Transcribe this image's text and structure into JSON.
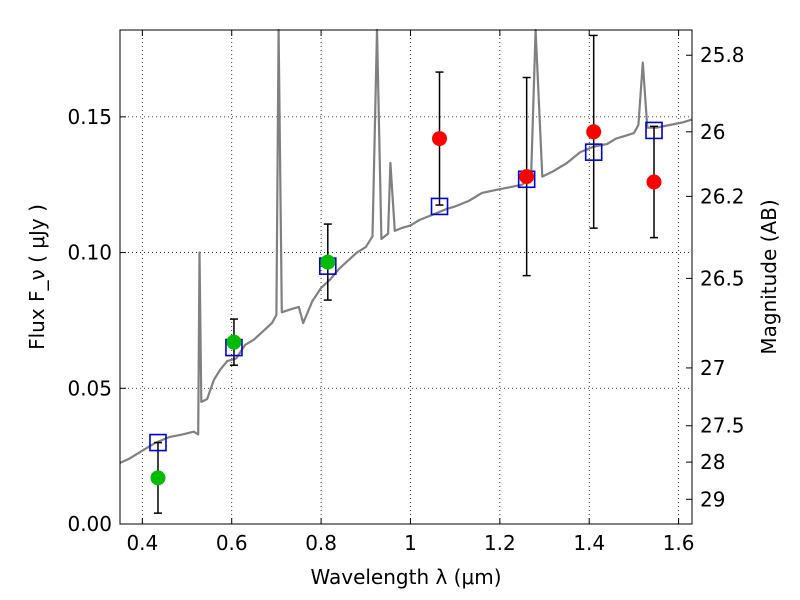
{
  "chart_data": {
    "type": "scatter",
    "xlabel": "Wavelength  λ (μm)",
    "ylabel": "Flux  F_ν  ( μJy )",
    "ylabel_right": "Magnitude (AB)",
    "xlim": [
      0.35,
      1.63
    ],
    "ylim": [
      0.0,
      0.182
    ],
    "grid": true,
    "x_ticks": [
      {
        "value": 0.4,
        "label": "0.4"
      },
      {
        "value": 0.6,
        "label": "0.6"
      },
      {
        "value": 0.8,
        "label": "0.8"
      },
      {
        "value": 1.0,
        "label": "1"
      },
      {
        "value": 1.2,
        "label": "1.2"
      },
      {
        "value": 1.4,
        "label": "1.4"
      },
      {
        "value": 1.6,
        "label": "1.6"
      }
    ],
    "y_ticks": [
      {
        "value": 0.0,
        "label": "0.00"
      },
      {
        "value": 0.05,
        "label": "0.05"
      },
      {
        "value": 0.1,
        "label": "0.10"
      },
      {
        "value": 0.15,
        "label": "0.15"
      }
    ],
    "right_ticks": [
      {
        "flux": 0.1727,
        "label": "25.8"
      },
      {
        "flux": 0.1445,
        "label": "26"
      },
      {
        "flux": 0.1207,
        "label": "26.2"
      },
      {
        "flux": 0.0905,
        "label": "26.5"
      },
      {
        "flux": 0.0575,
        "label": "27"
      },
      {
        "flux": 0.0362,
        "label": "27.5"
      },
      {
        "flux": 0.0228,
        "label": "28"
      },
      {
        "flux": 0.0091,
        "label": "29"
      }
    ],
    "sed_model": {
      "color": "#808080",
      "points": [
        [
          0.35,
          0.0225
        ],
        [
          0.37,
          0.024
        ],
        [
          0.4,
          0.027
        ],
        [
          0.43,
          0.03
        ],
        [
          0.46,
          0.032
        ],
        [
          0.49,
          0.033
        ],
        [
          0.515,
          0.034
        ],
        [
          0.525,
          0.033
        ],
        [
          0.528,
          0.1
        ],
        [
          0.532,
          0.045
        ],
        [
          0.545,
          0.046
        ],
        [
          0.56,
          0.053
        ],
        [
          0.575,
          0.057
        ],
        [
          0.59,
          0.06
        ],
        [
          0.61,
          0.061
        ],
        [
          0.63,
          0.066
        ],
        [
          0.65,
          0.068
        ],
        [
          0.67,
          0.071
        ],
        [
          0.69,
          0.074
        ],
        [
          0.7,
          0.077
        ],
        [
          0.705,
          0.182
        ],
        [
          0.712,
          0.078
        ],
        [
          0.73,
          0.079
        ],
        [
          0.75,
          0.08
        ],
        [
          0.76,
          0.074
        ],
        [
          0.78,
          0.082
        ],
        [
          0.8,
          0.087
        ],
        [
          0.82,
          0.09
        ],
        [
          0.84,
          0.094
        ],
        [
          0.86,
          0.097
        ],
        [
          0.88,
          0.1
        ],
        [
          0.9,
          0.102
        ],
        [
          0.915,
          0.106
        ],
        [
          0.925,
          0.182
        ],
        [
          0.935,
          0.105
        ],
        [
          0.95,
          0.107
        ],
        [
          0.955,
          0.133
        ],
        [
          0.965,
          0.108
        ],
        [
          0.98,
          0.109
        ],
        [
          1.0,
          0.11
        ],
        [
          1.02,
          0.112
        ],
        [
          1.05,
          0.114
        ],
        [
          1.08,
          0.116
        ],
        [
          1.1,
          0.117
        ],
        [
          1.13,
          0.119
        ],
        [
          1.16,
          0.122
        ],
        [
          1.19,
          0.123
        ],
        [
          1.22,
          0.124
        ],
        [
          1.25,
          0.125
        ],
        [
          1.27,
          0.128
        ],
        [
          1.28,
          0.182
        ],
        [
          1.295,
          0.128
        ],
        [
          1.32,
          0.13
        ],
        [
          1.35,
          0.133
        ],
        [
          1.38,
          0.137
        ],
        [
          1.41,
          0.139
        ],
        [
          1.44,
          0.14
        ],
        [
          1.46,
          0.142
        ],
        [
          1.48,
          0.143
        ],
        [
          1.5,
          0.144
        ],
        [
          1.51,
          0.147
        ],
        [
          1.52,
          0.17
        ],
        [
          1.53,
          0.146
        ],
        [
          1.55,
          0.146
        ],
        [
          1.58,
          0.147
        ],
        [
          1.61,
          0.148
        ],
        [
          1.63,
          0.149
        ]
      ]
    },
    "model_photometry": {
      "color": "#0000cc",
      "points": [
        [
          0.435,
          0.03
        ],
        [
          0.605,
          0.065
        ],
        [
          0.815,
          0.095
        ],
        [
          1.065,
          0.117
        ],
        [
          1.26,
          0.127
        ],
        [
          1.41,
          0.137
        ],
        [
          1.545,
          0.145
        ]
      ]
    },
    "observed_optical": {
      "color": "#00bb00",
      "points": [
        {
          "x": 0.435,
          "y": 0.017,
          "err": 0.013
        },
        {
          "x": 0.605,
          "y": 0.067,
          "err": 0.0085
        },
        {
          "x": 0.815,
          "y": 0.0965,
          "err": 0.014
        }
      ]
    },
    "observed_nir": {
      "color": "#ff0000",
      "points": [
        {
          "x": 1.065,
          "y": 0.142,
          "err": 0.0245
        },
        {
          "x": 1.26,
          "y": 0.128,
          "err": 0.0365
        },
        {
          "x": 1.41,
          "y": 0.1445,
          "err": 0.0355
        },
        {
          "x": 1.545,
          "y": 0.126,
          "err": 0.0205
        }
      ]
    }
  }
}
